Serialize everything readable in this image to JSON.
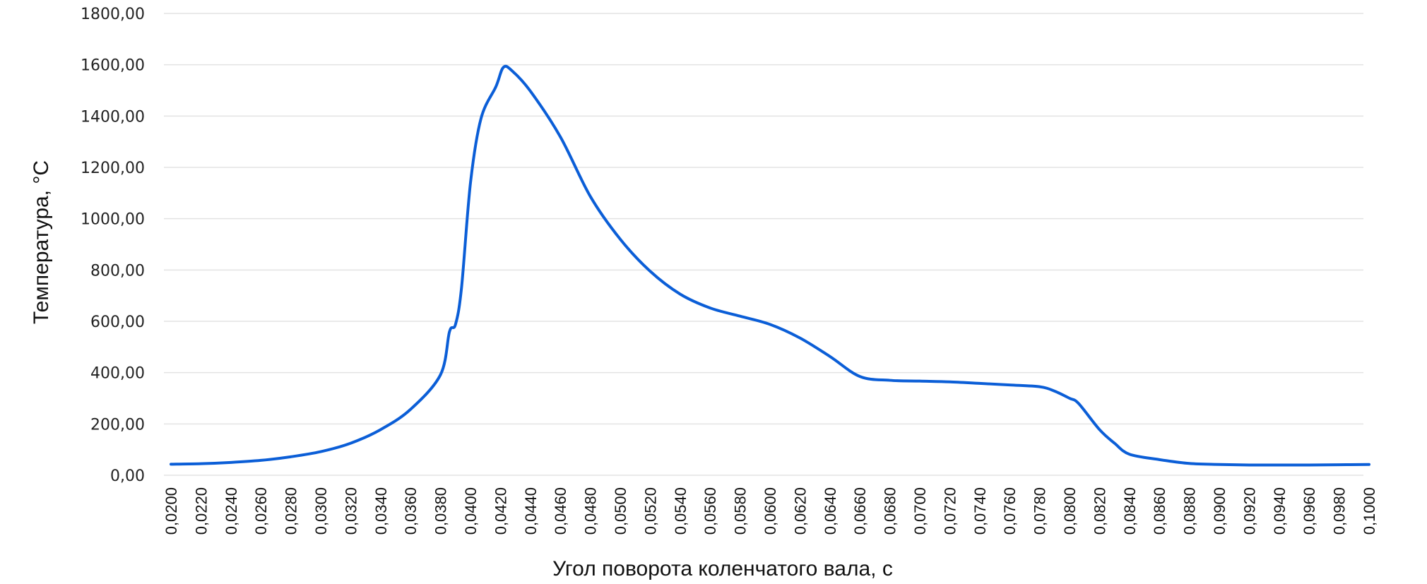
{
  "chart_data": {
    "type": "line",
    "title": "",
    "xlabel": "Угол поворота коленчатого вала, с",
    "ylabel": "Температура, °С",
    "xlim": [
      0.02,
      0.1
    ],
    "ylim": [
      0,
      1800
    ],
    "grid": true,
    "y_ticks": [
      "0,00",
      "200,00",
      "400,00",
      "600,00",
      "800,00",
      "1000,00",
      "1200,00",
      "1400,00",
      "1600,00",
      "1800,00"
    ],
    "x_ticks": [
      "0,0200",
      "0,0220",
      "0,0240",
      "0,0260",
      "0,0280",
      "0,0300",
      "0,0320",
      "0,0340",
      "0,0360",
      "0,0380",
      "0,0400",
      "0,0420",
      "0,0440",
      "0,0460",
      "0,0480",
      "0,0500",
      "0,0520",
      "0,0540",
      "0,0560",
      "0,0580",
      "0,0600",
      "0,0620",
      "0,0640",
      "0,0660",
      "0,0680",
      "0,0700",
      "0,0720",
      "0,0740",
      "0,0760",
      "0,0780",
      "0,0800",
      "0,0820",
      "0,0840",
      "0,0860",
      "0,0880",
      "0,0900",
      "0,0920",
      "0,0940",
      "0,0960",
      "0,0980",
      "0,1000"
    ],
    "line_color": "#0b5ed7",
    "series": [
      {
        "x": [
          0.02,
          0.022,
          0.024,
          0.026,
          0.028,
          0.03,
          0.032,
          0.034,
          0.036,
          0.038,
          0.0386,
          0.039,
          0.0394,
          0.04,
          0.0407,
          0.0417,
          0.0422,
          0.0428,
          0.044,
          0.046,
          0.048,
          0.05,
          0.052,
          0.054,
          0.056,
          0.058,
          0.06,
          0.062,
          0.064,
          0.066,
          0.068,
          0.07,
          0.072,
          0.074,
          0.076,
          0.078,
          0.079,
          0.08,
          0.0806,
          0.082,
          0.083,
          0.084,
          0.086,
          0.088,
          0.09,
          0.092,
          0.094,
          0.096,
          0.098,
          0.1
        ],
        "y": [
          43,
          45,
          50,
          58,
          72,
          92,
          125,
          178,
          257,
          392,
          560,
          588,
          730,
          1140,
          1390,
          1515,
          1590,
          1575,
          1497,
          1319,
          1087,
          920,
          795,
          706,
          652,
          620,
          588,
          535,
          463,
          385,
          370,
          367,
          364,
          358,
          352,
          345,
          328,
          300,
          280,
          178,
          125,
          82,
          61,
          46,
          42,
          40,
          40,
          40,
          41,
          42
        ]
      }
    ]
  }
}
